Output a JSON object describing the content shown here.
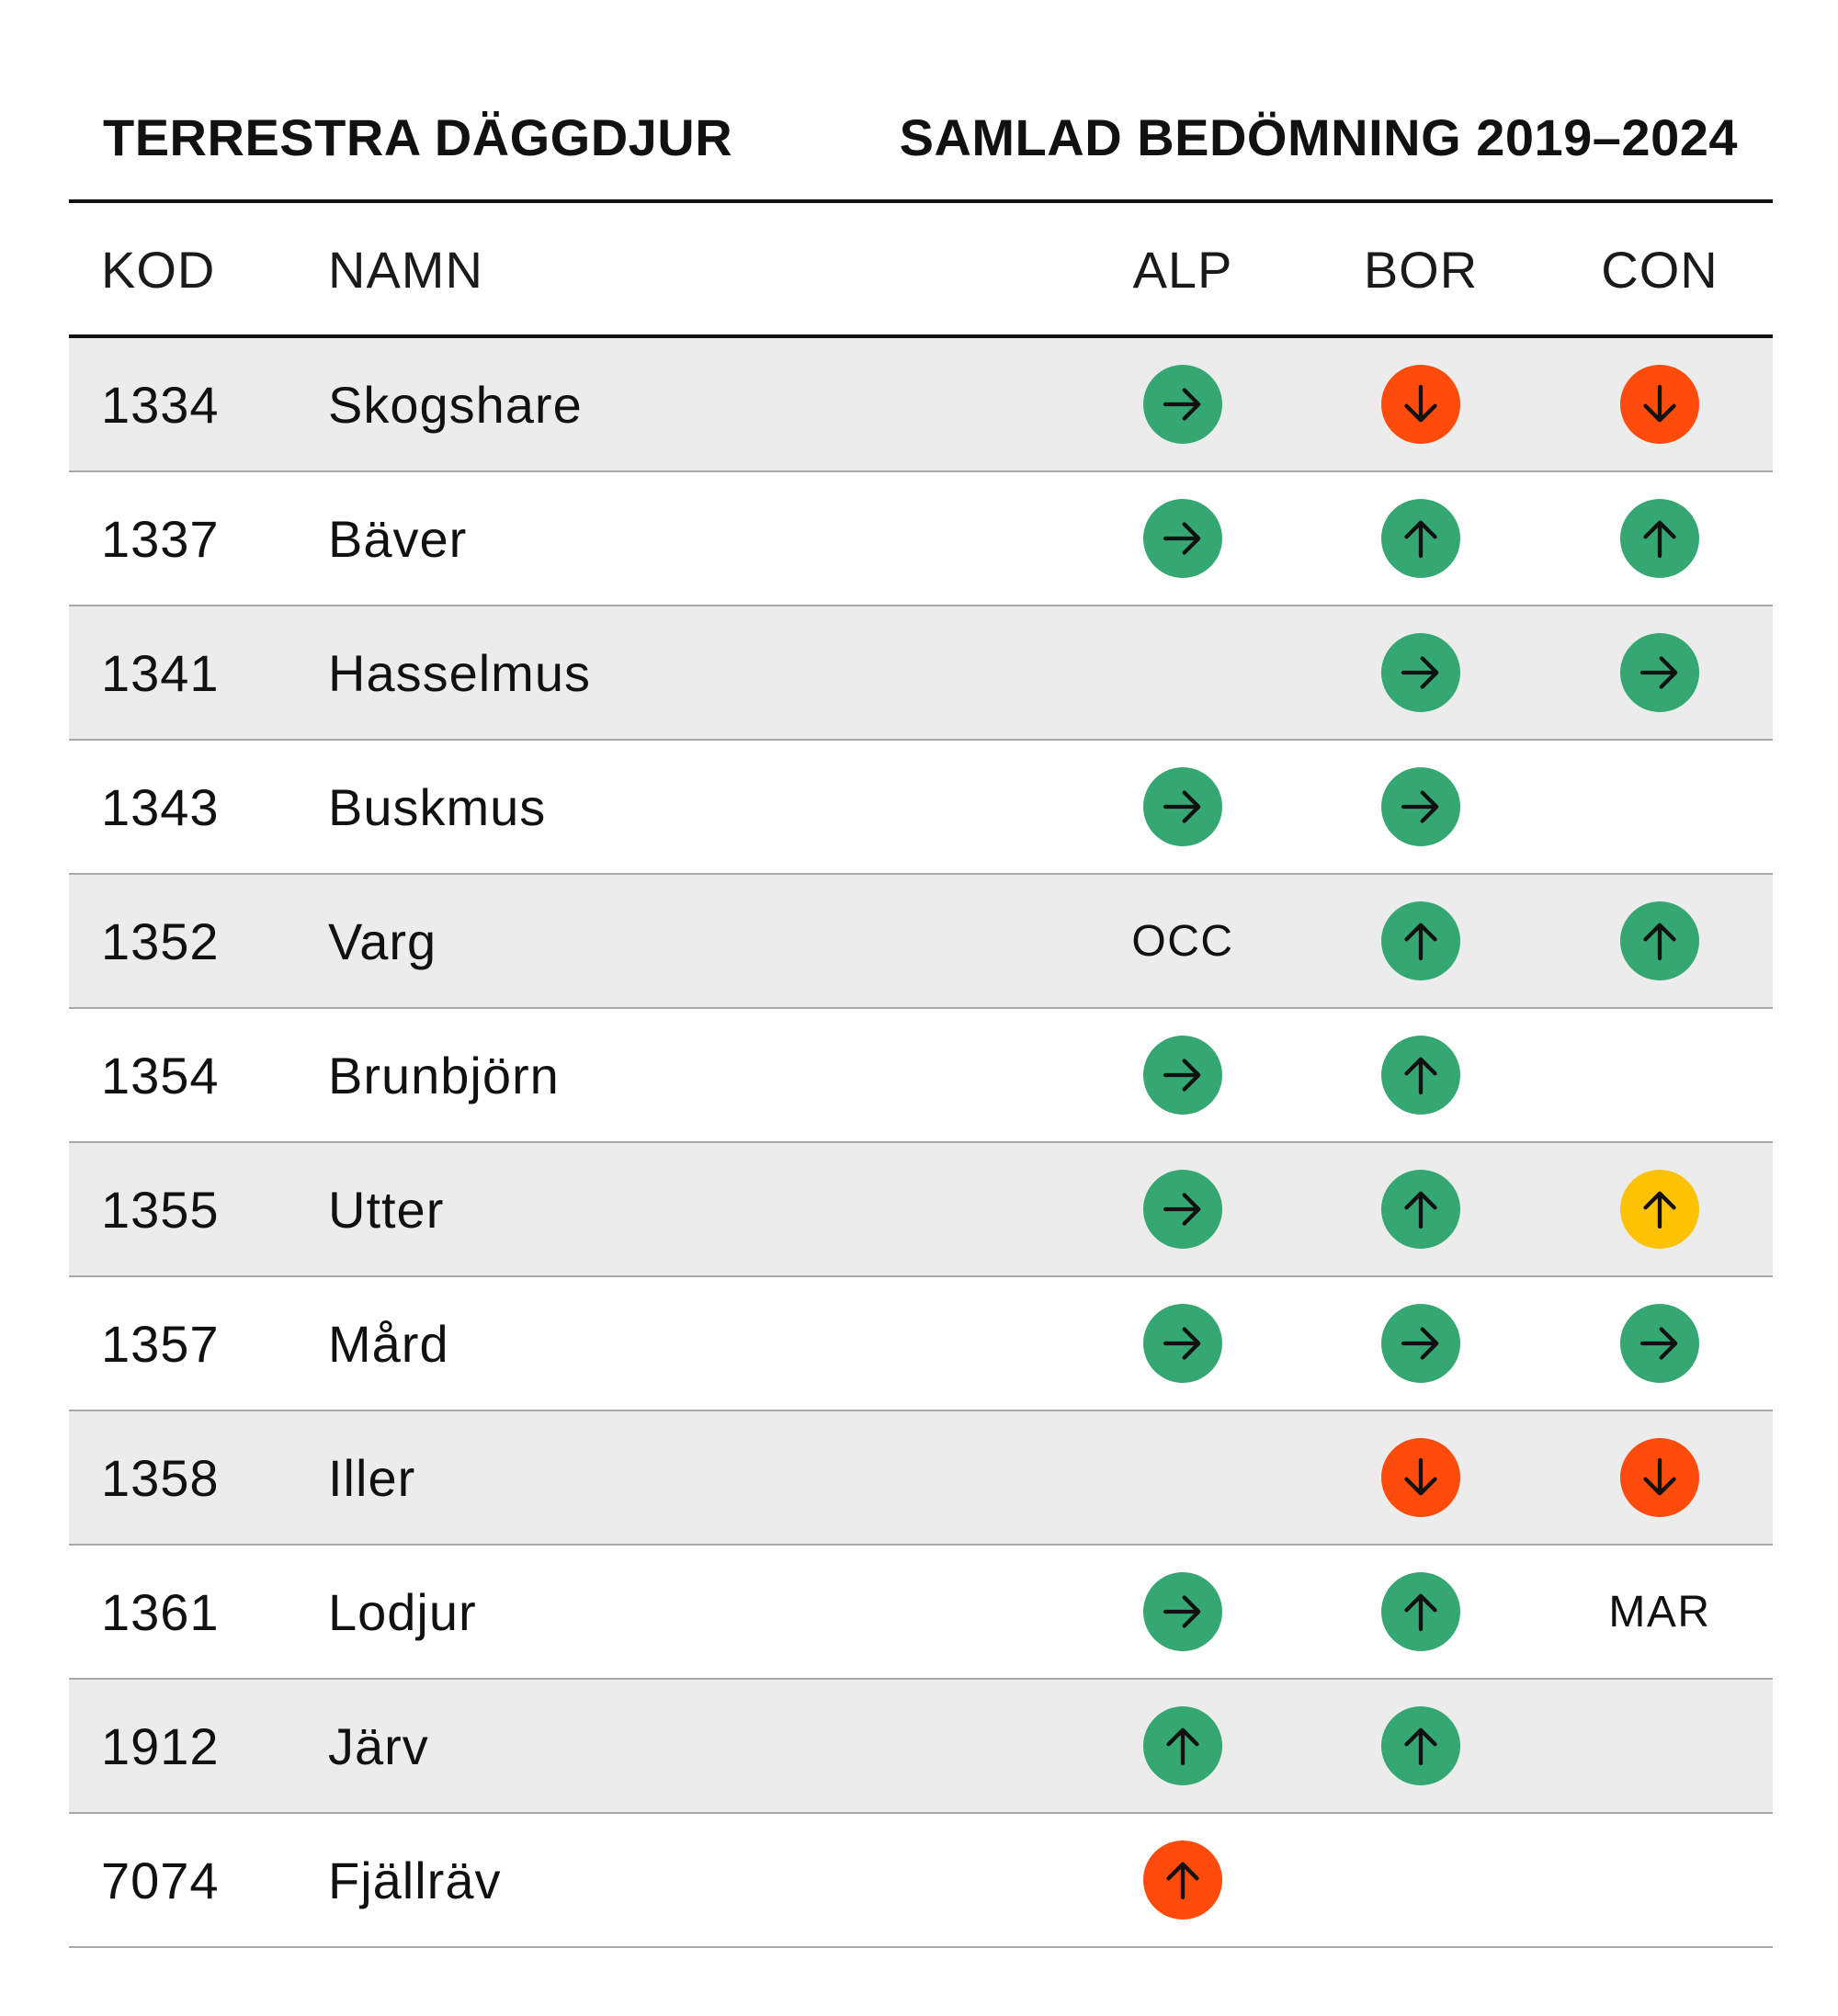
{
  "header": {
    "title_left": "TERRESTRA DÄGGDJUR",
    "title_right": "SAMLAD BEDÖMNING 2019–2024"
  },
  "columns": {
    "kod": "KOD",
    "namn": "NAMN",
    "alp": "ALP",
    "bor": "BOR",
    "con": "CON"
  },
  "colors": {
    "green": "#35a772",
    "red": "#fc4b0b",
    "yellow": "#fdc203",
    "arrow": "#111111",
    "shaded_row": "#ececec"
  },
  "rows": [
    {
      "kod": "1334",
      "namn": "Skogshare",
      "alp": {
        "color": "green",
        "dir": "right"
      },
      "bor": {
        "color": "red",
        "dir": "down"
      },
      "con": {
        "color": "red",
        "dir": "down"
      }
    },
    {
      "kod": "1337",
      "namn": "Bäver",
      "alp": {
        "color": "green",
        "dir": "right"
      },
      "bor": {
        "color": "green",
        "dir": "up"
      },
      "con": {
        "color": "green",
        "dir": "up"
      }
    },
    {
      "kod": "1341",
      "namn": "Hasselmus",
      "alp": null,
      "bor": {
        "color": "green",
        "dir": "right"
      },
      "con": {
        "color": "green",
        "dir": "right"
      }
    },
    {
      "kod": "1343",
      "namn": "Buskmus",
      "alp": {
        "color": "green",
        "dir": "right"
      },
      "bor": {
        "color": "green",
        "dir": "right"
      },
      "con": null
    },
    {
      "kod": "1352",
      "namn": "Varg",
      "alp": {
        "text": "OCC"
      },
      "bor": {
        "color": "green",
        "dir": "up"
      },
      "con": {
        "color": "green",
        "dir": "up"
      }
    },
    {
      "kod": "1354",
      "namn": "Brunbjörn",
      "alp": {
        "color": "green",
        "dir": "right"
      },
      "bor": {
        "color": "green",
        "dir": "up"
      },
      "con": null
    },
    {
      "kod": "1355",
      "namn": "Utter",
      "alp": {
        "color": "green",
        "dir": "right"
      },
      "bor": {
        "color": "green",
        "dir": "up"
      },
      "con": {
        "color": "yellow",
        "dir": "up"
      }
    },
    {
      "kod": "1357",
      "namn": "Mård",
      "alp": {
        "color": "green",
        "dir": "right"
      },
      "bor": {
        "color": "green",
        "dir": "right"
      },
      "con": {
        "color": "green",
        "dir": "right"
      }
    },
    {
      "kod": "1358",
      "namn": "Iller",
      "alp": null,
      "bor": {
        "color": "red",
        "dir": "down"
      },
      "con": {
        "color": "red",
        "dir": "down"
      }
    },
    {
      "kod": "1361",
      "namn": "Lodjur",
      "alp": {
        "color": "green",
        "dir": "right"
      },
      "bor": {
        "color": "green",
        "dir": "up"
      },
      "con": {
        "text": "MAR"
      }
    },
    {
      "kod": "1912",
      "namn": "Järv",
      "alp": {
        "color": "green",
        "dir": "up"
      },
      "bor": {
        "color": "green",
        "dir": "up"
      },
      "con": null
    },
    {
      "kod": "7074",
      "namn": "Fjällräv",
      "alp": {
        "color": "red",
        "dir": "up"
      },
      "bor": null,
      "con": null
    }
  ]
}
